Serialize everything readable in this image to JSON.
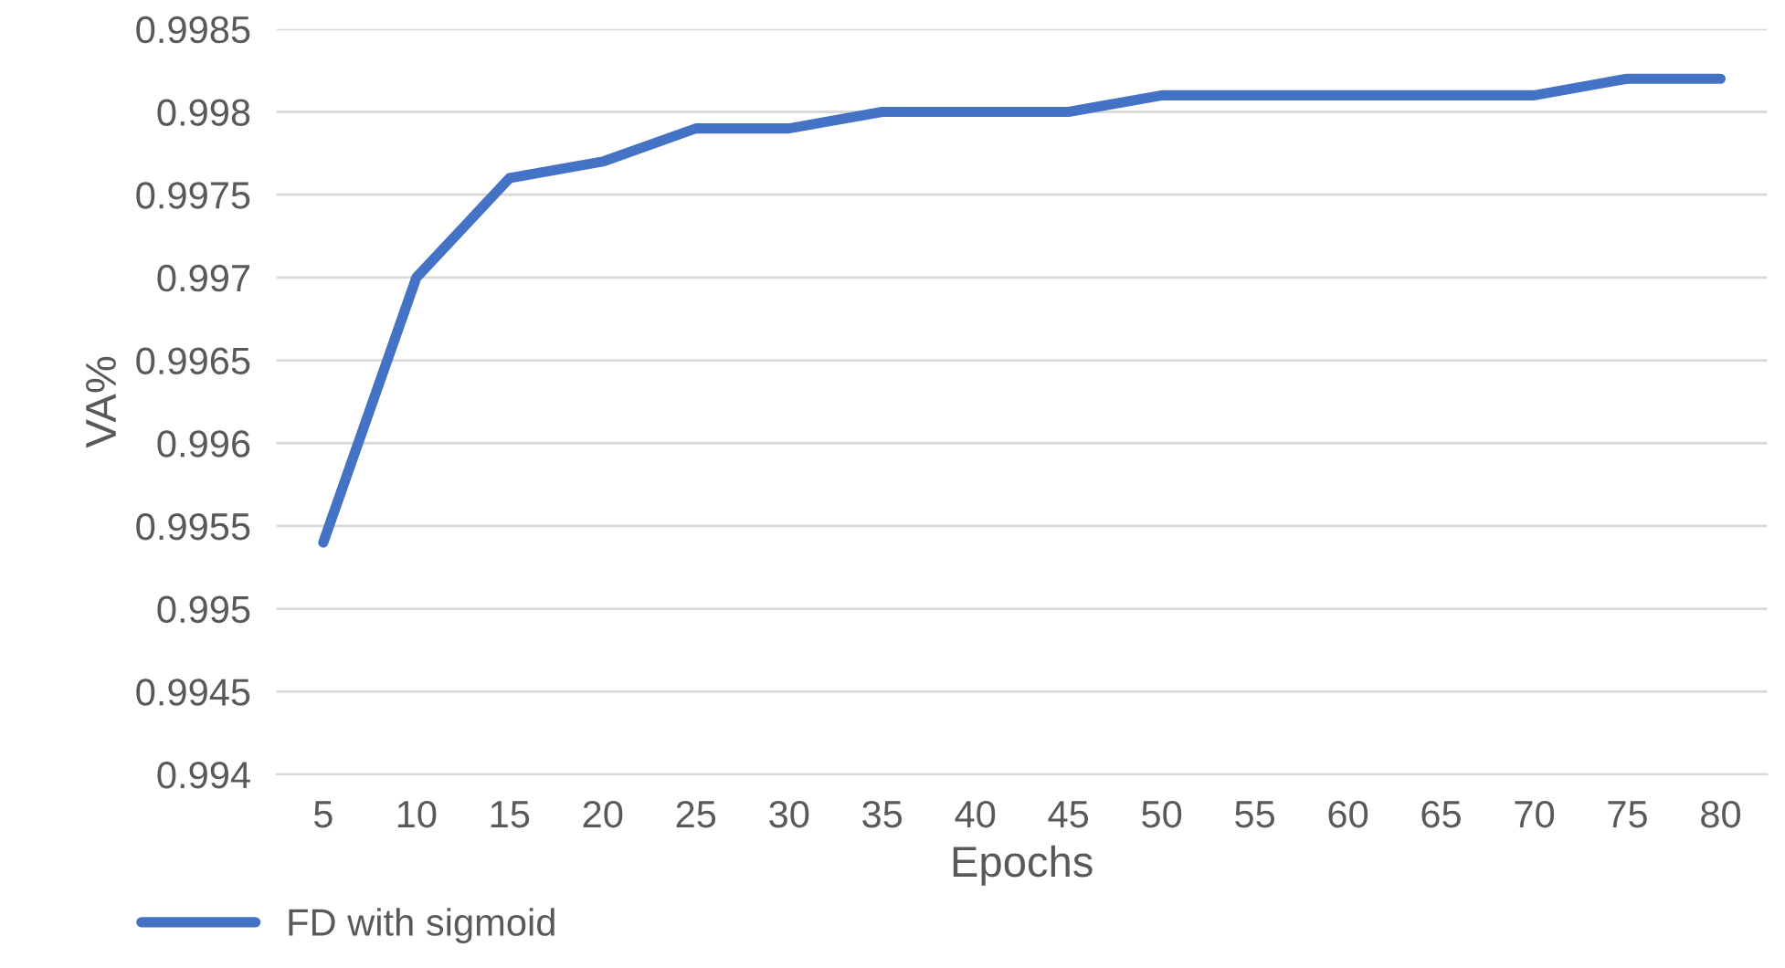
{
  "chart_data": {
    "type": "line",
    "xlabel": "Epochs",
    "ylabel": "VA%",
    "categories": [
      "5",
      "10",
      "15",
      "20",
      "25",
      "30",
      "35",
      "40",
      "45",
      "50",
      "55",
      "60",
      "65",
      "70",
      "75",
      "80"
    ],
    "series": [
      {
        "name": "FD with sigmoid",
        "color": "#4472c4",
        "values": [
          0.9954,
          0.997,
          0.9976,
          0.9977,
          0.9979,
          0.9979,
          0.998,
          0.998,
          0.998,
          0.9981,
          0.9981,
          0.9981,
          0.9981,
          0.9981,
          0.9982,
          0.9982
        ]
      }
    ],
    "ylim": [
      0.994,
      0.9985
    ],
    "yticks": [
      0.994,
      0.9945,
      0.995,
      0.9955,
      0.996,
      0.9965,
      0.997,
      0.9975,
      0.998,
      0.9985
    ],
    "grid": "y",
    "legend": "bottom left",
    "marker": "none",
    "line_style": "solid"
  }
}
